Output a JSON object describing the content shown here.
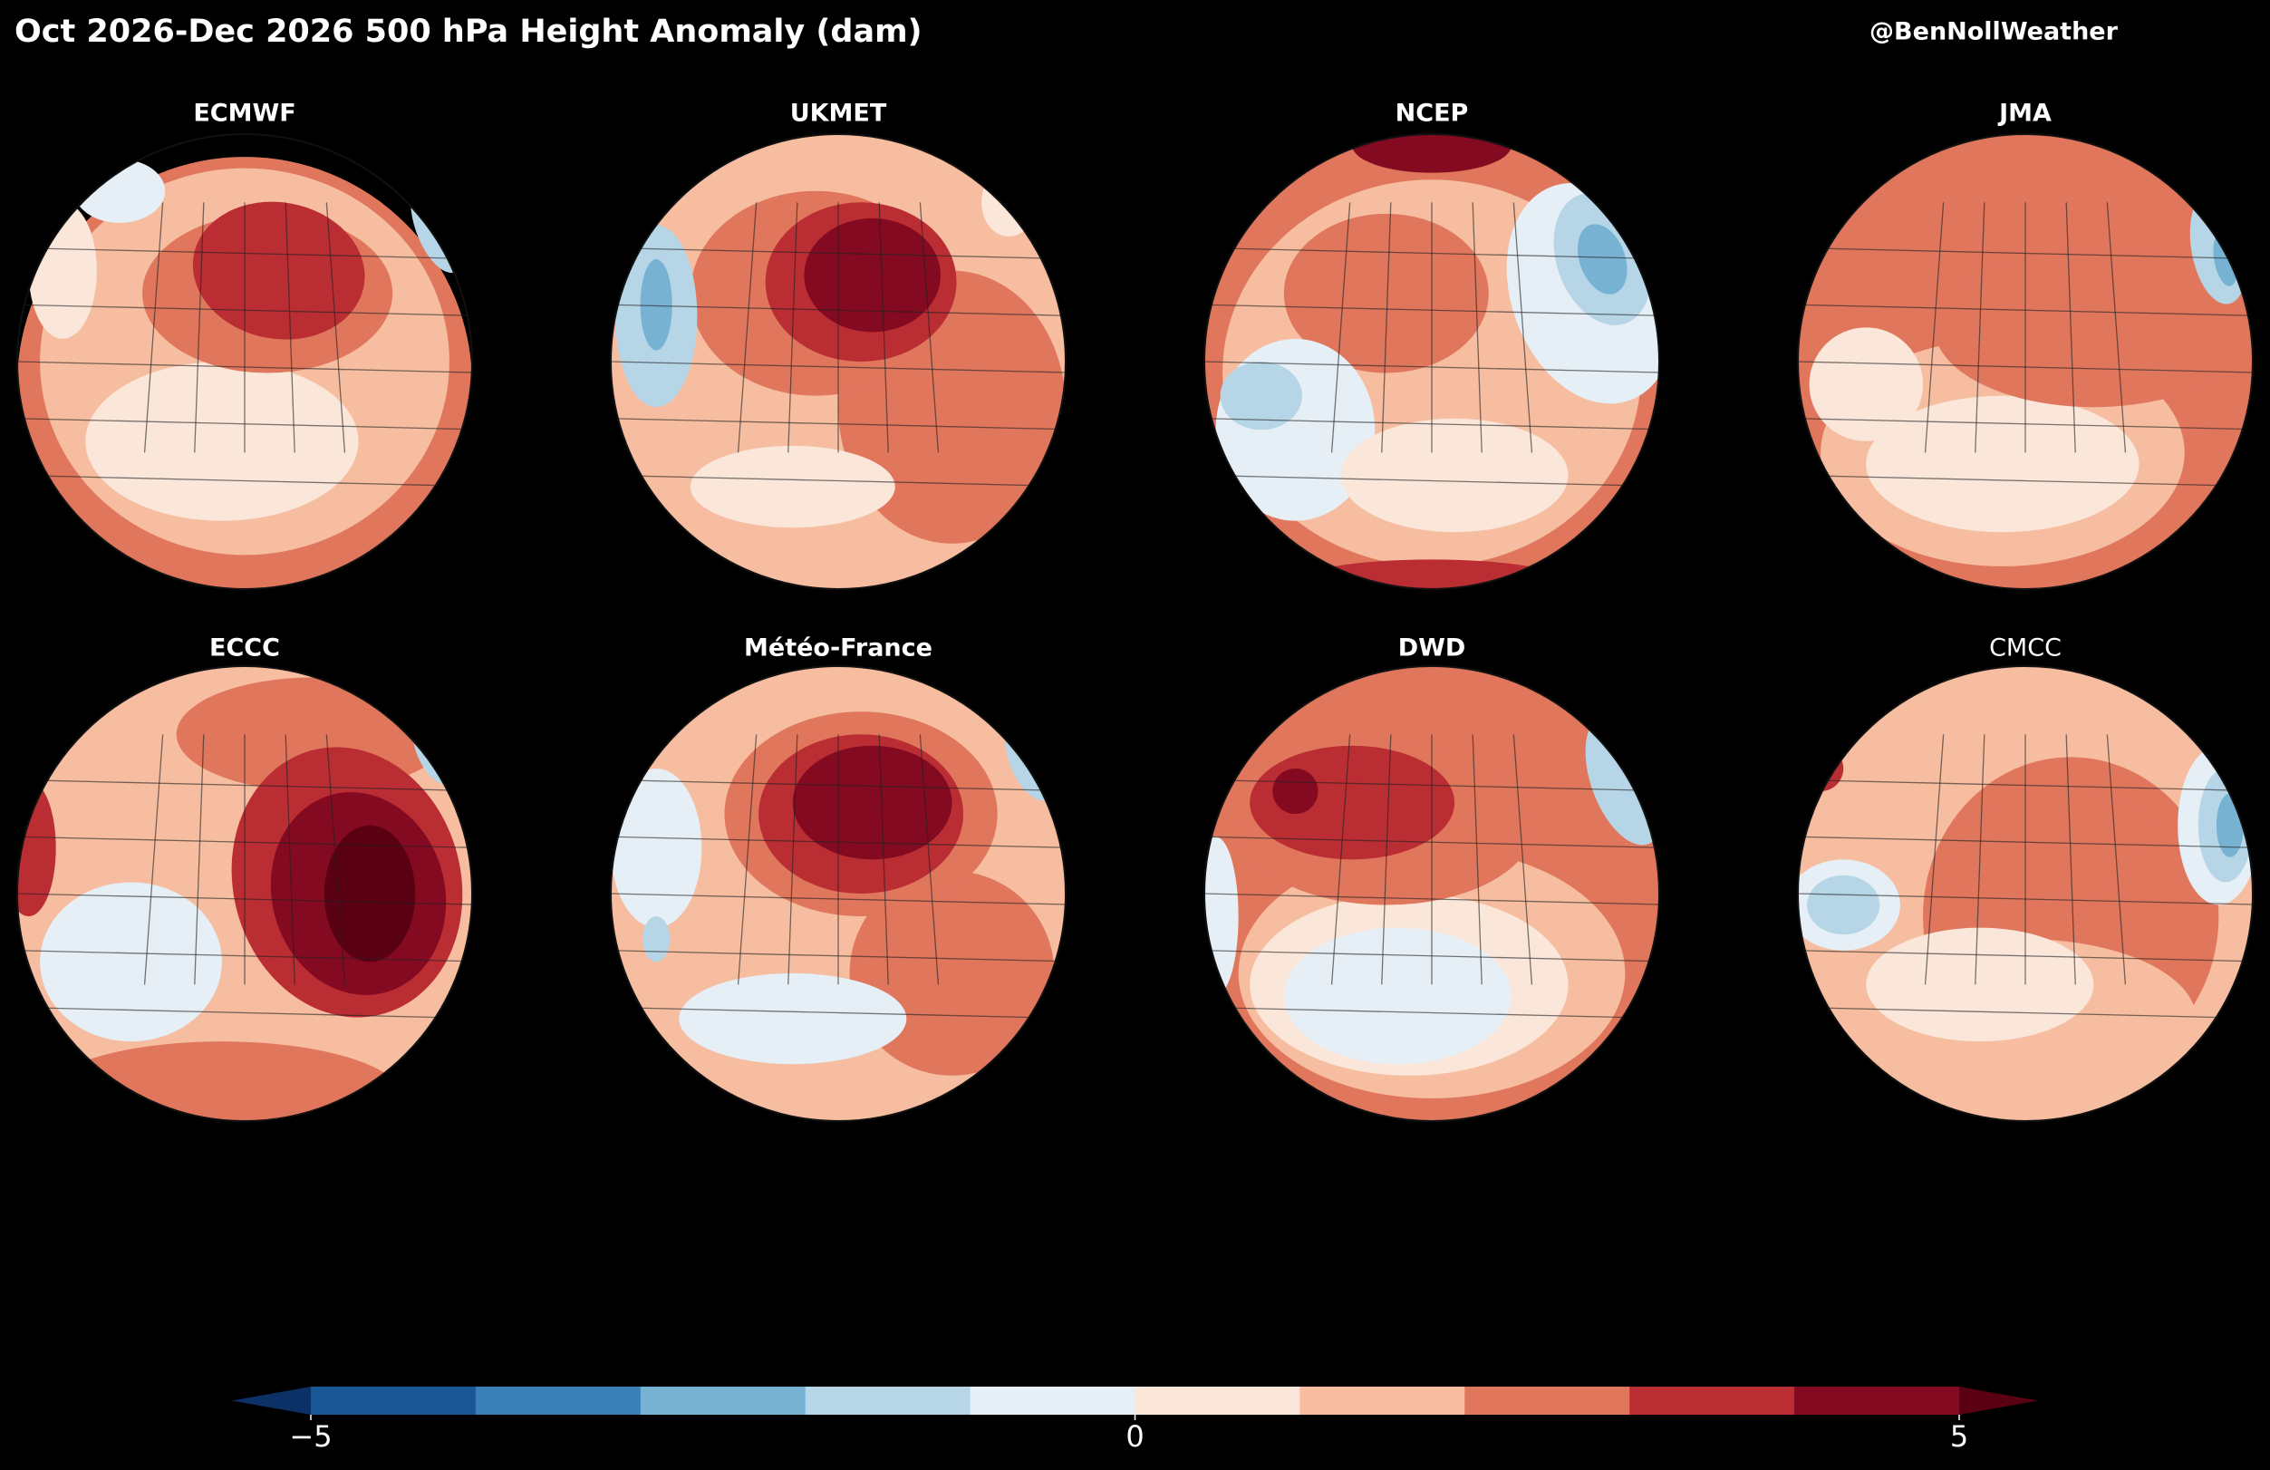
{
  "title": "Oct 2026-Dec 2026 500 hPa Height Anomaly (dam)",
  "credit": "@BenNollWeather",
  "panels": [
    {
      "title": "ECMWF"
    },
    {
      "title": "UKMET"
    },
    {
      "title": "NCEP"
    },
    {
      "title": "JMA"
    },
    {
      "title": "ECCC"
    },
    {
      "title": "Météo-France"
    },
    {
      "title": "DWD"
    },
    {
      "title": "CMCC"
    }
  ],
  "colorbar": {
    "levels": [
      -5,
      -4,
      -3,
      -2,
      -1,
      0,
      1,
      2,
      3,
      4,
      5
    ],
    "colors": [
      "#195696",
      "#3a7fb8",
      "#78b2d3",
      "#b6d6e8",
      "#e5eff5",
      "#fbe6da",
      "#f6bda0",
      "#e0775d",
      "#ba2d33",
      "#830a20"
    ],
    "extend_colors": [
      "#0b3166",
      "#5a0013"
    ],
    "ticks": [
      {
        "value": -5,
        "label": "−5"
      },
      0,
      5
    ]
  }
}
